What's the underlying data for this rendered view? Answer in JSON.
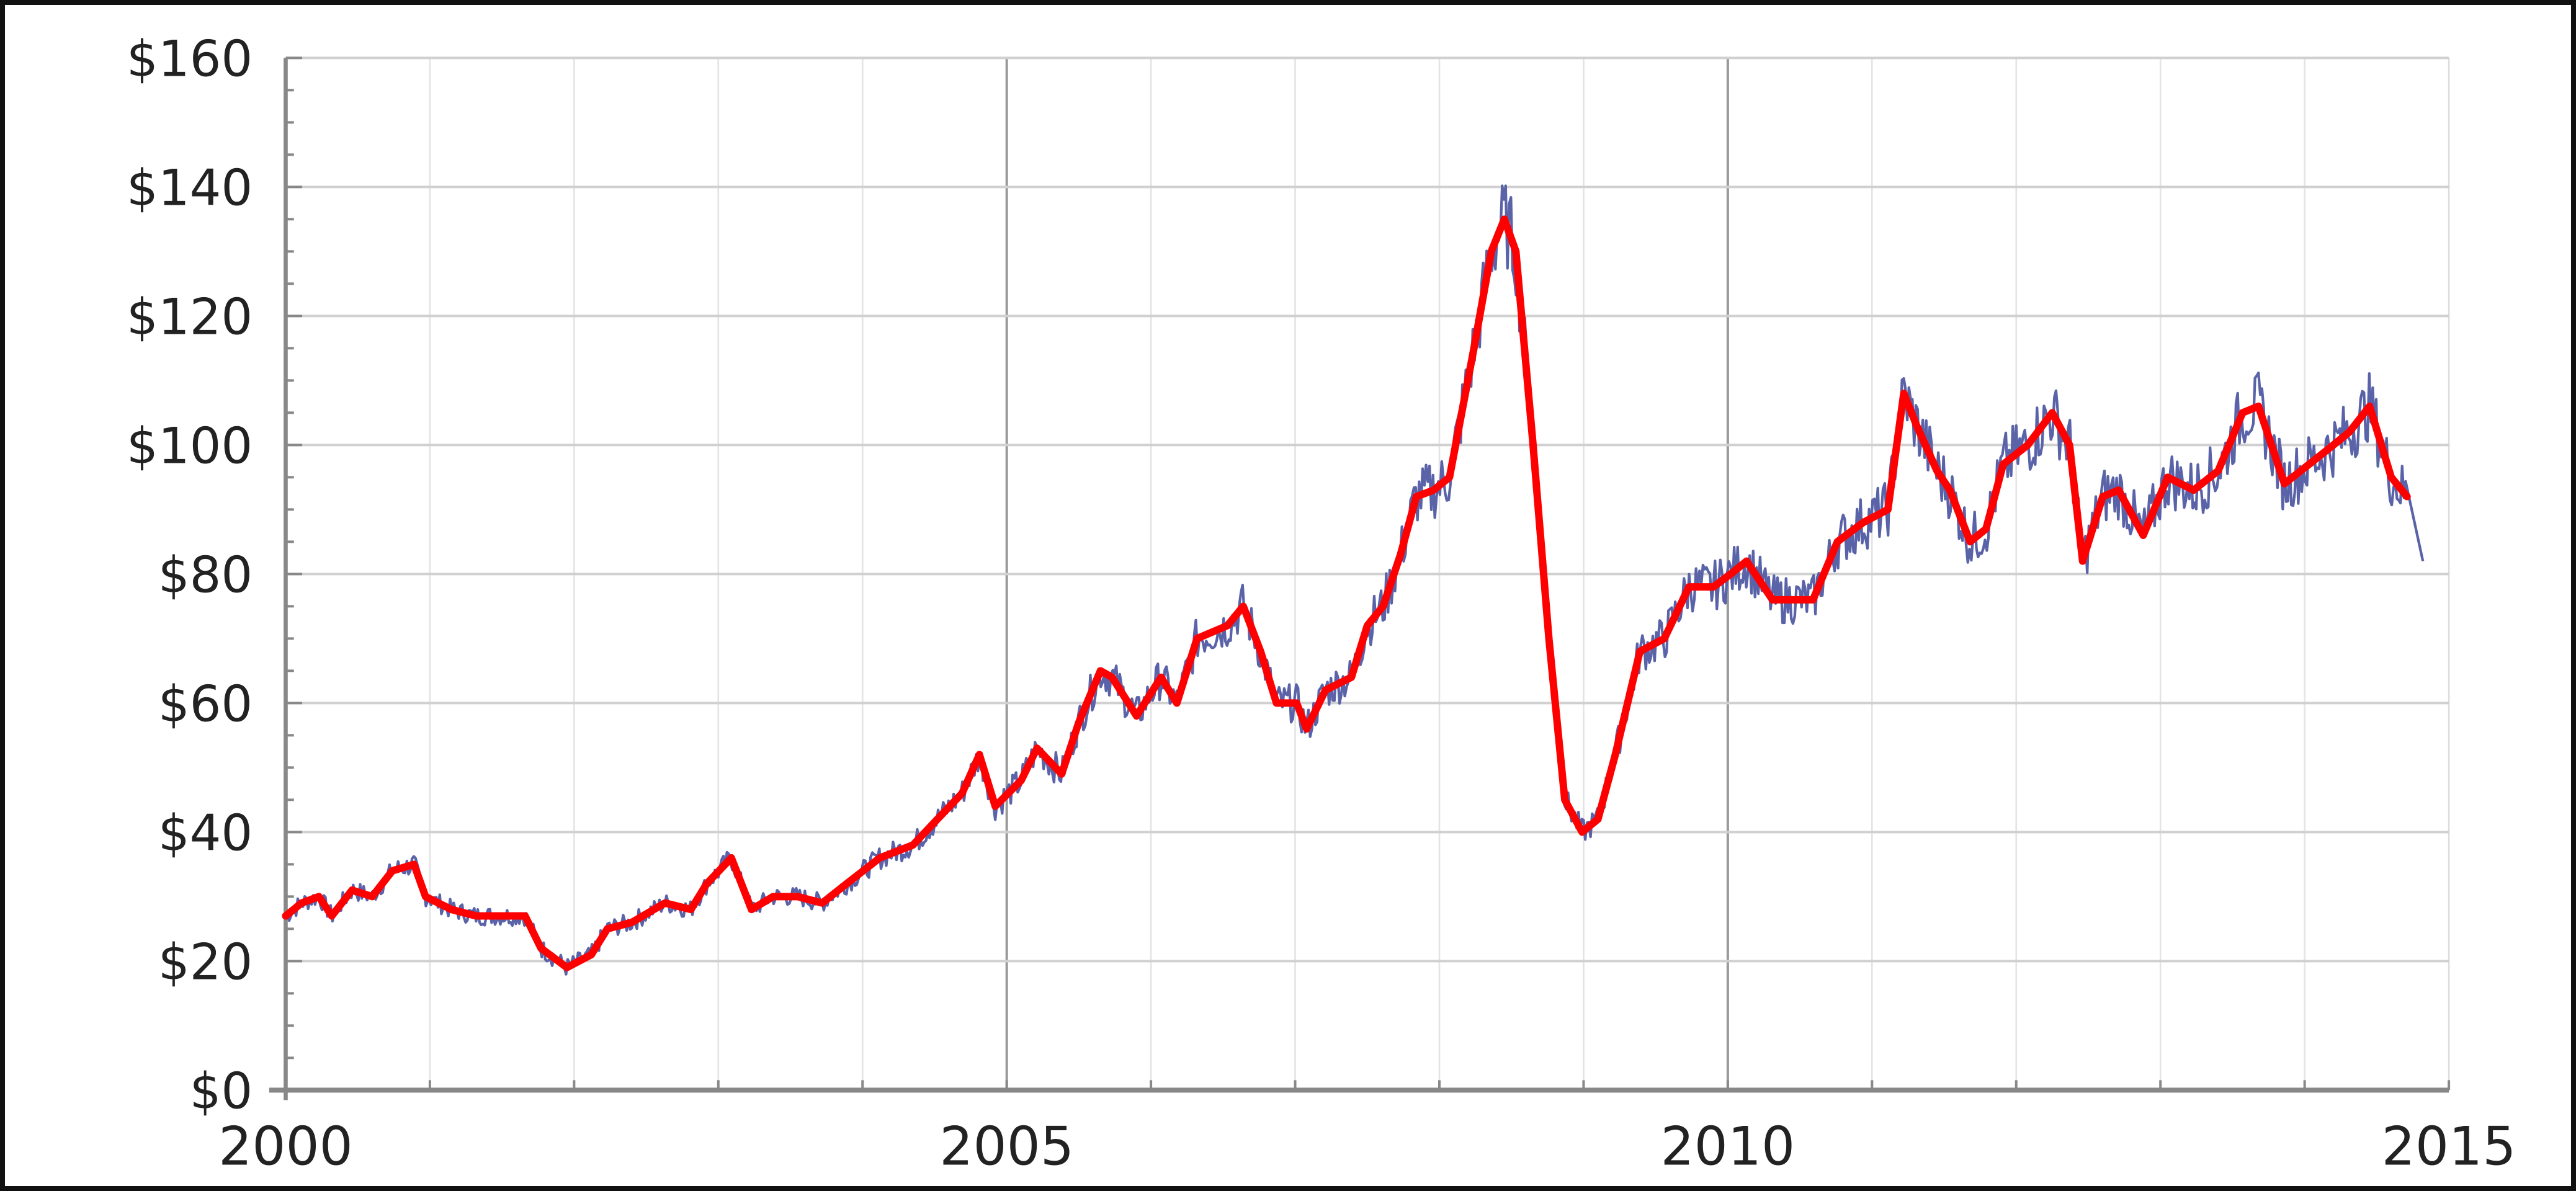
{
  "chart_data": {
    "type": "line",
    "title": "",
    "xlabel": "",
    "ylabel": "",
    "xlim": [
      2000,
      2015
    ],
    "ylim": [
      0,
      160
    ],
    "x_ticks": [
      "2000",
      "2005",
      "2010",
      "2015"
    ],
    "x_tick_values": [
      2000,
      2005,
      2010,
      2015
    ],
    "y_ticks": [
      "$0",
      "$20",
      "$40",
      "$60",
      "$80",
      "$100",
      "$120",
      "$140",
      "$160"
    ],
    "y_tick_values": [
      0,
      20,
      40,
      60,
      80,
      100,
      120,
      140,
      160
    ],
    "grid": true,
    "legend": "none",
    "colors": {
      "smoothed": "#ff0000",
      "raw": "#5a63a8",
      "grid": "#cccccc",
      "axis": "#888888"
    },
    "series": [
      {
        "style": "smoothed",
        "x": [
          2000.0,
          2000.11,
          2000.23,
          2000.32,
          2000.46,
          2000.6,
          2000.74,
          2000.89,
          2000.97,
          2001.15,
          2001.32,
          2001.49,
          2001.66,
          2001.77,
          2001.95,
          2002.12,
          2002.23,
          2002.4,
          2002.63,
          2002.81,
          2002.92,
          2003.09,
          2003.23,
          2003.38,
          2003.55,
          2003.72,
          2003.89,
          2004.12,
          2004.35,
          2004.52,
          2004.69,
          2004.81,
          2004.92,
          2005.1,
          2005.21,
          2005.38,
          2005.5,
          2005.65,
          2005.73,
          2005.9,
          2006.07,
          2006.18,
          2006.32,
          2006.53,
          2006.64,
          2006.76,
          2006.87,
          2007.01,
          2007.08,
          2007.21,
          2007.39,
          2007.5,
          2007.61,
          2007.73,
          2007.84,
          2007.96,
          2008.07,
          2008.24,
          2008.36,
          2008.45,
          2008.53,
          2008.65,
          2008.76,
          2008.87,
          2008.99,
          2009.1,
          2009.22,
          2009.39,
          2009.56,
          2009.73,
          2009.9,
          2010.02,
          2010.13,
          2010.31,
          2010.42,
          2010.59,
          2010.76,
          2010.94,
          2011.11,
          2011.22,
          2011.31,
          2011.45,
          2011.54,
          2011.68,
          2011.79,
          2011.91,
          2012.08,
          2012.25,
          2012.37,
          2012.46,
          2012.6,
          2012.71,
          2012.88,
          2013.05,
          2013.23,
          2013.4,
          2013.57,
          2013.68,
          2013.86,
          2014.03,
          2014.2,
          2014.31,
          2014.45,
          2014.6,
          2014.71
        ],
        "y": [
          27,
          29,
          30,
          27,
          31,
          30,
          34,
          35,
          30,
          28,
          27,
          27,
          27,
          22,
          19,
          21,
          25,
          26,
          29,
          28,
          32,
          36,
          28,
          30,
          30,
          29,
          32,
          36,
          38,
          42,
          46,
          52,
          44,
          48,
          53,
          49,
          57,
          65,
          64,
          58,
          64,
          60,
          70,
          72,
          75,
          68,
          60,
          60,
          56,
          62,
          64,
          72,
          75,
          83,
          92,
          93,
          95,
          115,
          130,
          135,
          130,
          100,
          70,
          45,
          40,
          42,
          52,
          68,
          70,
          78,
          78,
          80,
          82,
          76,
          76,
          76,
          85,
          88,
          90,
          108,
          103,
          96,
          93,
          85,
          87,
          97,
          100,
          105,
          100,
          82,
          92,
          93,
          86,
          95,
          93,
          96,
          105,
          106,
          94,
          97,
          100,
          102,
          106,
          95,
          92
        ]
      },
      {
        "style": "raw",
        "note_end": 82,
        "x_end": 2014.82
      }
    ]
  }
}
